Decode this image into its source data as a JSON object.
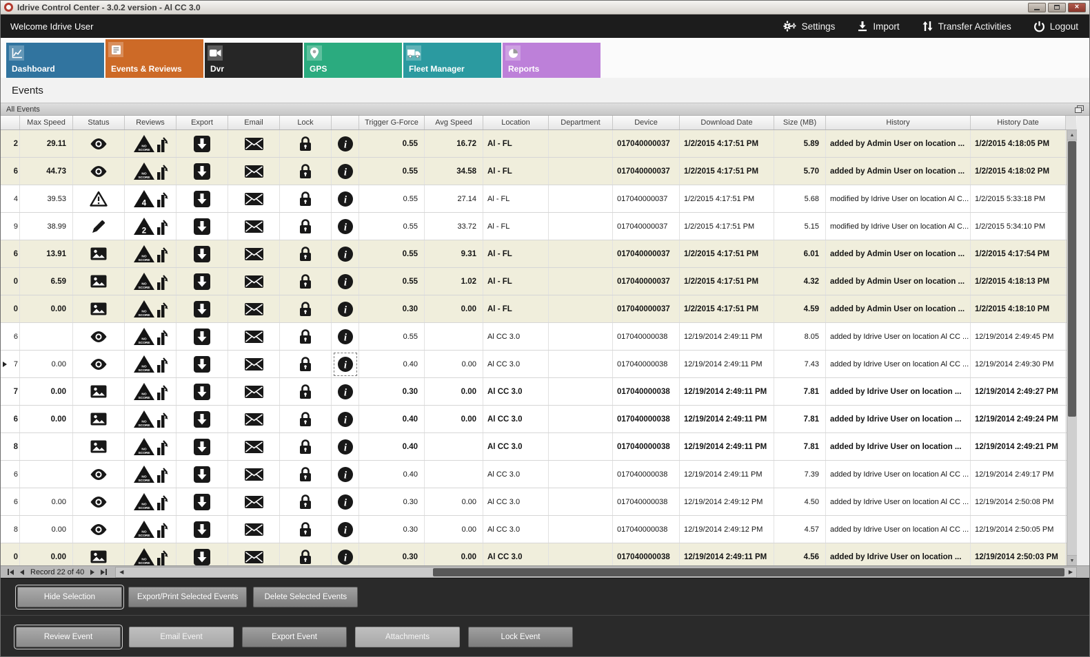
{
  "window": {
    "title": "Idrive Control Center - 3.0.2 version - Al CC 3.0"
  },
  "topbar": {
    "welcome": "Welcome Idrive User",
    "actions": [
      {
        "id": "settings",
        "label": "Settings",
        "icon": "gear-icon"
      },
      {
        "id": "import",
        "label": "Import",
        "icon": "import-icon"
      },
      {
        "id": "transfer-activities",
        "label": "Transfer Activities",
        "icon": "transfer-icon"
      },
      {
        "id": "logout",
        "label": "Logout",
        "icon": "power-icon"
      }
    ]
  },
  "tabs": [
    {
      "id": "dashboard",
      "label": "Dashboard",
      "color": "#31749f",
      "icon": "chart-line-icon",
      "selected": false
    },
    {
      "id": "events",
      "label": "Events & Reviews",
      "color": "#cd6a27",
      "icon": "events-icon",
      "selected": true
    },
    {
      "id": "dvr",
      "label": "Dvr",
      "color": "#262626",
      "icon": "video-camera-icon",
      "selected": false
    },
    {
      "id": "gps",
      "label": "GPS",
      "color": "#2bab7f",
      "icon": "map-pin-icon",
      "selected": false
    },
    {
      "id": "fleet",
      "label": "Fleet Manager",
      "color": "#2b9aa0",
      "icon": "truck-icon",
      "selected": false
    },
    {
      "id": "reports",
      "label": "Reports",
      "color": "#bd80d9",
      "icon": "pie-chart-icon",
      "selected": false
    }
  ],
  "page": {
    "heading": "Events",
    "panel_title": "All Events"
  },
  "grid": {
    "columns": [
      "",
      "Max Speed",
      "Status",
      "Reviews",
      "Export",
      "Email",
      "Lock",
      "",
      "Trigger G-Force",
      "Avg Speed",
      "Location",
      "Department",
      "Device",
      "Download Date",
      "Size (MB)",
      "History",
      "History Date"
    ],
    "selected_row": 8,
    "rows": [
      {
        "clip": "2",
        "max_speed": "29.11",
        "status": "eye",
        "review": "NO SCORE",
        "trigger_g_force": "0.55",
        "avg_speed": "16.72",
        "location": "Al - FL",
        "department": "",
        "device": "017040000037",
        "download_date": "1/2/2015 4:17:51 PM",
        "size_mb": "5.89",
        "history": "added by Admin User on location ...",
        "history_date": "1/2/2015 4:18:05 PM",
        "highlighted": true,
        "bold": true
      },
      {
        "clip": "6",
        "max_speed": "44.73",
        "status": "eye",
        "review": "NO SCORE",
        "trigger_g_force": "0.55",
        "avg_speed": "34.58",
        "location": "Al - FL",
        "department": "",
        "device": "017040000037",
        "download_date": "1/2/2015 4:17:51 PM",
        "size_mb": "5.70",
        "history": "added by Admin User on location ...",
        "history_date": "1/2/2015 4:18:02 PM",
        "highlighted": true,
        "bold": true
      },
      {
        "clip": "4",
        "max_speed": "39.53",
        "status": "warning",
        "review": "4",
        "trigger_g_force": "0.55",
        "avg_speed": "27.14",
        "location": "Al - FL",
        "department": "",
        "device": "017040000037",
        "download_date": "1/2/2015 4:17:51 PM",
        "size_mb": "5.68",
        "history": "modified by Idrive User on location Al C...",
        "history_date": "1/2/2015 5:33:18 PM",
        "highlighted": false,
        "bold": false
      },
      {
        "clip": "9",
        "max_speed": "38.99",
        "status": "pencil",
        "review": "2",
        "trigger_g_force": "0.55",
        "avg_speed": "33.72",
        "location": "Al - FL",
        "department": "",
        "device": "017040000037",
        "download_date": "1/2/2015 4:17:51 PM",
        "size_mb": "5.15",
        "history": "modified by Idrive User on location Al C...",
        "history_date": "1/2/2015 5:34:10 PM",
        "highlighted": false,
        "bold": false
      },
      {
        "clip": "6",
        "max_speed": "13.91",
        "status": "image",
        "review": "NO SCORE",
        "trigger_g_force": "0.55",
        "avg_speed": "9.31",
        "location": "Al - FL",
        "department": "",
        "device": "017040000037",
        "download_date": "1/2/2015 4:17:51 PM",
        "size_mb": "6.01",
        "history": "added by Admin User on location ...",
        "history_date": "1/2/2015 4:17:54 PM",
        "highlighted": true,
        "bold": true
      },
      {
        "clip": "0",
        "max_speed": "6.59",
        "status": "image",
        "review": "NO SCORE",
        "trigger_g_force": "0.55",
        "avg_speed": "1.02",
        "location": "Al - FL",
        "department": "",
        "device": "017040000037",
        "download_date": "1/2/2015 4:17:51 PM",
        "size_mb": "4.32",
        "history": "added by Admin User on location ...",
        "history_date": "1/2/2015 4:18:13 PM",
        "highlighted": true,
        "bold": true
      },
      {
        "clip": "0",
        "max_speed": "0.00",
        "status": "image",
        "review": "NO SCORE",
        "trigger_g_force": "0.30",
        "avg_speed": "0.00",
        "location": "Al - FL",
        "department": "",
        "device": "017040000037",
        "download_date": "1/2/2015 4:17:51 PM",
        "size_mb": "4.59",
        "history": "added by Admin User on location ...",
        "history_date": "1/2/2015 4:18:10 PM",
        "highlighted": true,
        "bold": true
      },
      {
        "clip": "6",
        "max_speed": "",
        "status": "eye",
        "review": "NO SCORE",
        "trigger_g_force": "0.55",
        "avg_speed": "",
        "location": "Al CC 3.0",
        "department": "",
        "device": "017040000038",
        "download_date": "12/19/2014 2:49:11 PM",
        "size_mb": "8.05",
        "history": "added by Idrive User on location Al CC ...",
        "history_date": "12/19/2014 2:49:45 PM",
        "highlighted": false,
        "bold": false
      },
      {
        "clip": "7",
        "max_speed": "0.00",
        "status": "eye",
        "review": "NO SCORE",
        "trigger_g_force": "0.40",
        "avg_speed": "0.00",
        "location": "Al CC 3.0",
        "department": "",
        "device": "017040000038",
        "download_date": "12/19/2014 2:49:11 PM",
        "size_mb": "7.43",
        "history": "added by Idrive User on location Al CC ...",
        "history_date": "12/19/2014 2:49:30 PM",
        "highlighted": false,
        "bold": false
      },
      {
        "clip": "7",
        "max_speed": "0.00",
        "status": "image",
        "review": "NO SCORE",
        "trigger_g_force": "0.30",
        "avg_speed": "0.00",
        "location": "Al CC 3.0",
        "department": "",
        "device": "017040000038",
        "download_date": "12/19/2014 2:49:11 PM",
        "size_mb": "7.81",
        "history": "added by Idrive User on location ...",
        "history_date": "12/19/2014 2:49:27 PM",
        "highlighted": false,
        "bold": true
      },
      {
        "clip": "6",
        "max_speed": "0.00",
        "status": "image",
        "review": "NO SCORE",
        "trigger_g_force": "0.40",
        "avg_speed": "0.00",
        "location": "Al CC 3.0",
        "department": "",
        "device": "017040000038",
        "download_date": "12/19/2014 2:49:11 PM",
        "size_mb": "7.81",
        "history": "added by Idrive User on location ...",
        "history_date": "12/19/2014 2:49:24 PM",
        "highlighted": false,
        "bold": true
      },
      {
        "clip": "8",
        "max_speed": "",
        "status": "image",
        "review": "NO SCORE",
        "trigger_g_force": "0.40",
        "avg_speed": "",
        "location": "Al CC 3.0",
        "department": "",
        "device": "017040000038",
        "download_date": "12/19/2014 2:49:11 PM",
        "size_mb": "7.81",
        "history": "added by Idrive User on location ...",
        "history_date": "12/19/2014 2:49:21 PM",
        "highlighted": false,
        "bold": true
      },
      {
        "clip": "6",
        "max_speed": "",
        "status": "eye",
        "review": "NO SCORE",
        "trigger_g_force": "0.40",
        "avg_speed": "",
        "location": "Al CC 3.0",
        "department": "",
        "device": "017040000038",
        "download_date": "12/19/2014 2:49:11 PM",
        "size_mb": "7.39",
        "history": "added by Idrive User on location Al CC ...",
        "history_date": "12/19/2014 2:49:17 PM",
        "highlighted": false,
        "bold": false
      },
      {
        "clip": "6",
        "max_speed": "0.00",
        "status": "eye",
        "review": "NO SCORE",
        "trigger_g_force": "0.30",
        "avg_speed": "0.00",
        "location": "Al CC 3.0",
        "department": "",
        "device": "017040000038",
        "download_date": "12/19/2014 2:49:12 PM",
        "size_mb": "4.50",
        "history": "added by Idrive User on location Al CC ...",
        "history_date": "12/19/2014 2:50:08 PM",
        "highlighted": false,
        "bold": false
      },
      {
        "clip": "8",
        "max_speed": "0.00",
        "status": "eye",
        "review": "NO SCORE",
        "trigger_g_force": "0.30",
        "avg_speed": "0.00",
        "location": "Al CC 3.0",
        "department": "",
        "device": "017040000038",
        "download_date": "12/19/2014 2:49:12 PM",
        "size_mb": "4.57",
        "history": "added by Idrive User on location Al CC ...",
        "history_date": "12/19/2014 2:50:05 PM",
        "highlighted": false,
        "bold": false
      },
      {
        "clip": "0",
        "max_speed": "0.00",
        "status": "image",
        "review": "NO SCORE",
        "trigger_g_force": "0.30",
        "avg_speed": "0.00",
        "location": "Al CC 3.0",
        "department": "",
        "device": "017040000038",
        "download_date": "12/19/2014 2:49:11 PM",
        "size_mb": "4.56",
        "history": "added by Idrive User on location ...",
        "history_date": "12/19/2014 2:50:03 PM",
        "highlighted": true,
        "bold": true
      }
    ]
  },
  "pager": {
    "text": "Record 22 of 40"
  },
  "selection_actions": [
    {
      "label": "Hide Selection",
      "focused": true,
      "muted": false
    },
    {
      "label": "Export/Print Selected Events",
      "focused": false,
      "muted": false
    },
    {
      "label": "Delete Selected Events",
      "focused": false,
      "muted": false
    }
  ],
  "event_actions": [
    {
      "label": "Review Event",
      "focused": true,
      "muted": false
    },
    {
      "label": "Email Event",
      "focused": false,
      "muted": true
    },
    {
      "label": "Export Event",
      "focused": false,
      "muted": false
    },
    {
      "label": "Attachments",
      "focused": false,
      "muted": true
    },
    {
      "label": "Lock Event",
      "focused": false,
      "muted": false
    }
  ],
  "colors": {
    "highlight_row": "#f0eedc",
    "topbar_bg": "#1c1c1c",
    "panel_bg": "#2a2a2a"
  }
}
